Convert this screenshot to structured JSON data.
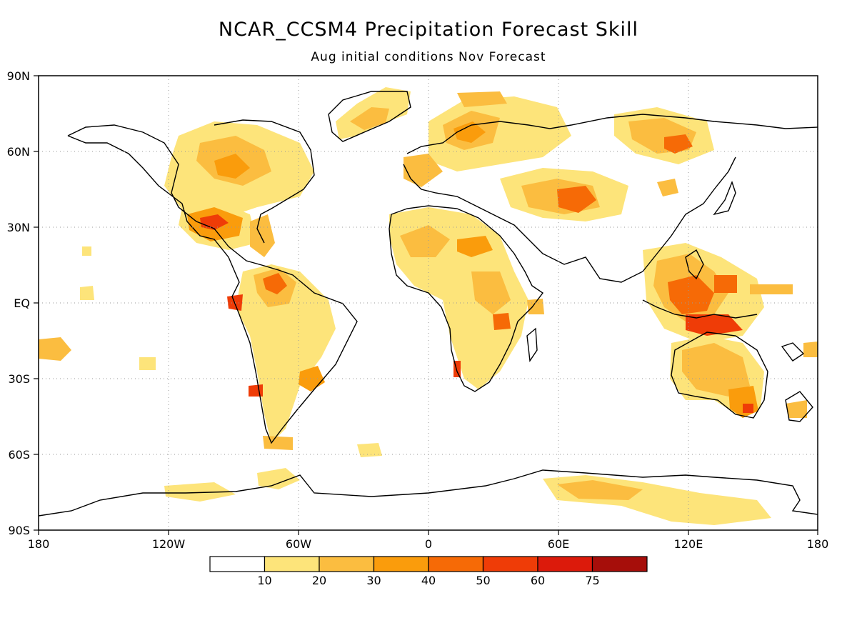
{
  "title": "NCAR_CCSM4 Precipitation Forecast Skill",
  "subtitle": "Aug initial conditions   Nov Forecast",
  "map": {
    "projection": "equirectangular",
    "lon_range": [
      -180,
      180
    ],
    "lat_range": [
      -90,
      90
    ],
    "grid": true,
    "lat_labels": [
      "90N",
      "60N",
      "30N",
      "EQ",
      "30S",
      "60S",
      "90S"
    ],
    "lon_labels": [
      "180",
      "120W",
      "60W",
      "0",
      "60E",
      "120E",
      "180"
    ]
  },
  "colorbar": {
    "labels": [
      "10",
      "20",
      "30",
      "40",
      "50",
      "60",
      "75"
    ],
    "colors": [
      "#ffffff",
      "#fde47a",
      "#fbbd40",
      "#fa9c0c",
      "#f66a06",
      "#ef3c07",
      "#dc1a0b",
      "#a60e0a"
    ]
  }
}
